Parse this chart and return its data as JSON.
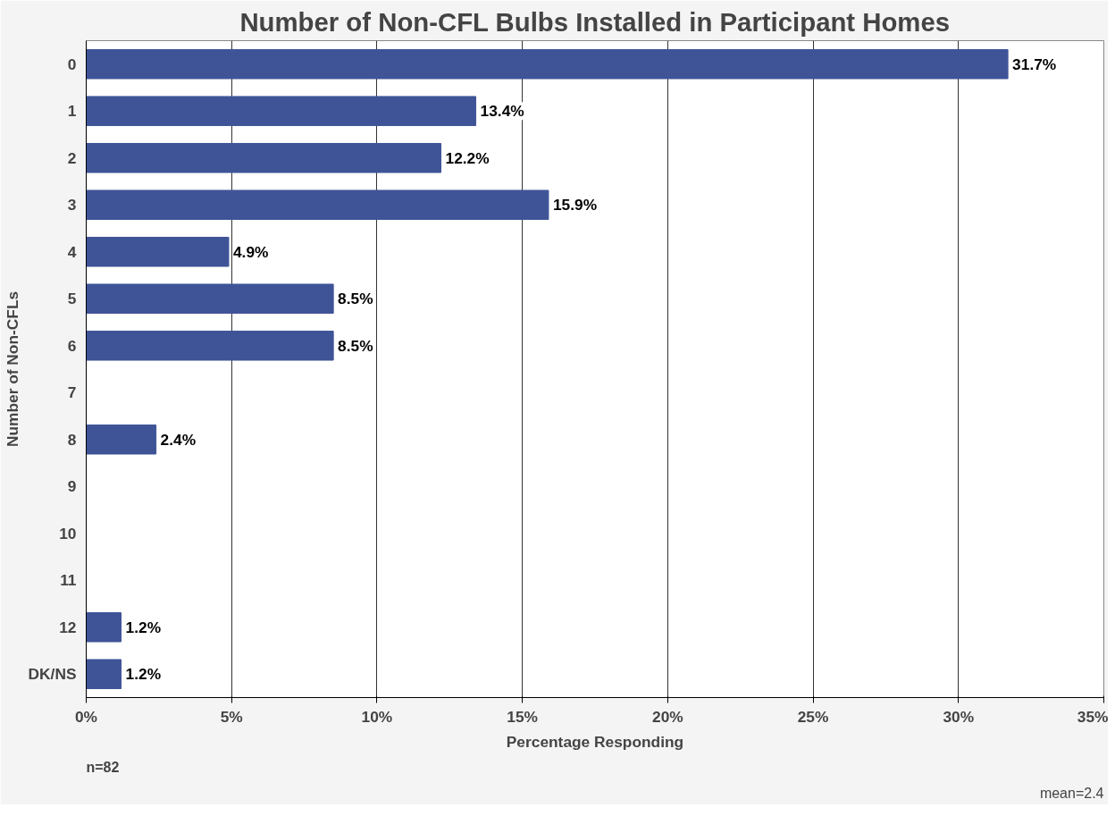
{
  "chart_data": {
    "type": "bar",
    "orientation": "horizontal",
    "title": "Number of Non-CFL Bulbs Installed in Participant Homes",
    "xlabel": "Percentage Responding",
    "ylabel": "Number of Non-CFLs",
    "categories": [
      "0",
      "1",
      "2",
      "3",
      "4",
      "5",
      "6",
      "7",
      "8",
      "9",
      "10",
      "11",
      "12",
      "DK/NS"
    ],
    "values": [
      31.7,
      13.4,
      12.2,
      15.9,
      4.9,
      8.5,
      8.5,
      null,
      2.4,
      null,
      null,
      null,
      1.2,
      1.2
    ],
    "value_labels": [
      "31.7%",
      "13.4%",
      "12.2%",
      "15.9%",
      "4.9%",
      "8.5%",
      "8.5%",
      null,
      "2.4%",
      null,
      null,
      null,
      "1.2%",
      "1.2%"
    ],
    "color": "#3f5497",
    "xlim": [
      0,
      35
    ],
    "xticks": [
      {
        "value": 0,
        "label": "0%"
      },
      {
        "value": 5,
        "label": "5%"
      },
      {
        "value": 10,
        "label": "10%"
      },
      {
        "value": 15,
        "label": "15%"
      },
      {
        "value": 20,
        "label": "20%"
      },
      {
        "value": 25,
        "label": "25%"
      },
      {
        "value": 30,
        "label": "30%"
      },
      {
        "value": 35,
        "label": "35%"
      }
    ],
    "grid": "x",
    "annotations": [
      "n=82",
      "mean=2.4"
    ]
  }
}
